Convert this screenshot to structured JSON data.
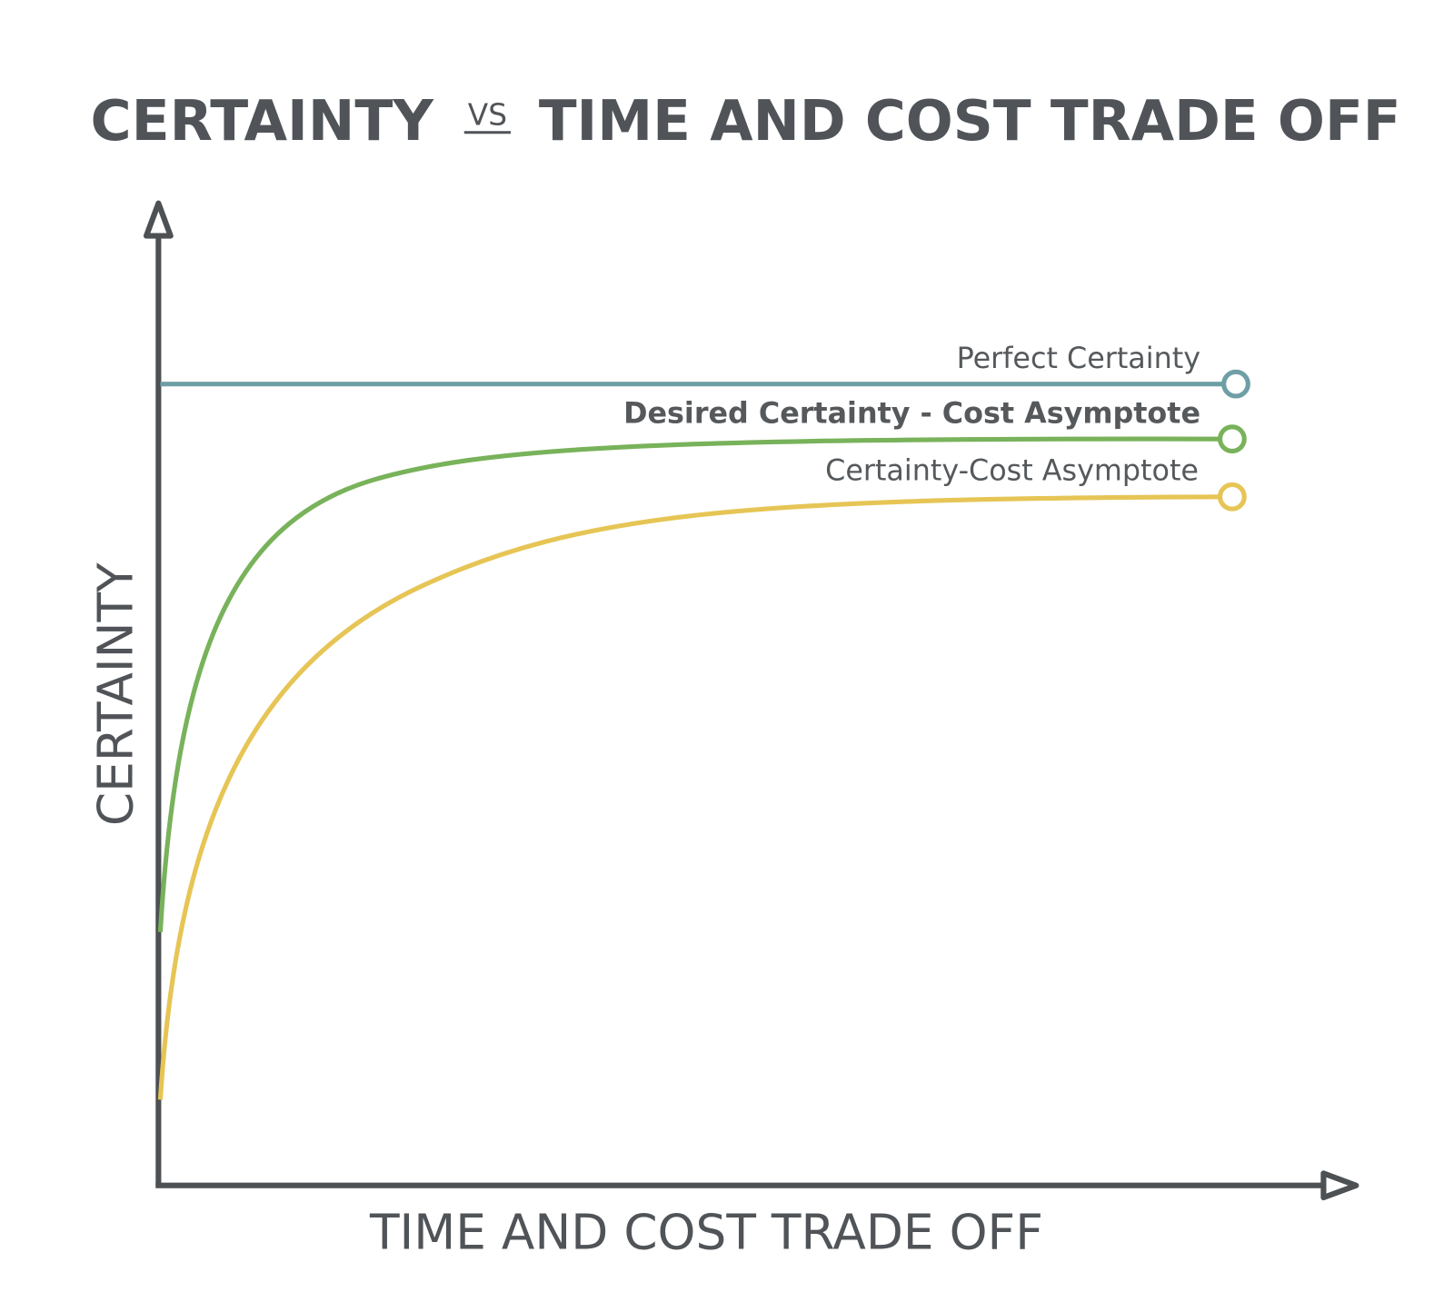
{
  "title": {
    "left": "CERTAINTY",
    "vs": "VS",
    "right": "TIME AND COST TRADE OFF"
  },
  "axes": {
    "y": "CERTAINTY",
    "x": "TIME AND COST TRADE OFF"
  },
  "curves": [
    {
      "label": "Perfect Certainty"
    },
    {
      "label": "Desired Certainty - Cost Asymptote"
    },
    {
      "label": "Certainty-Cost Asymptote"
    }
  ]
}
